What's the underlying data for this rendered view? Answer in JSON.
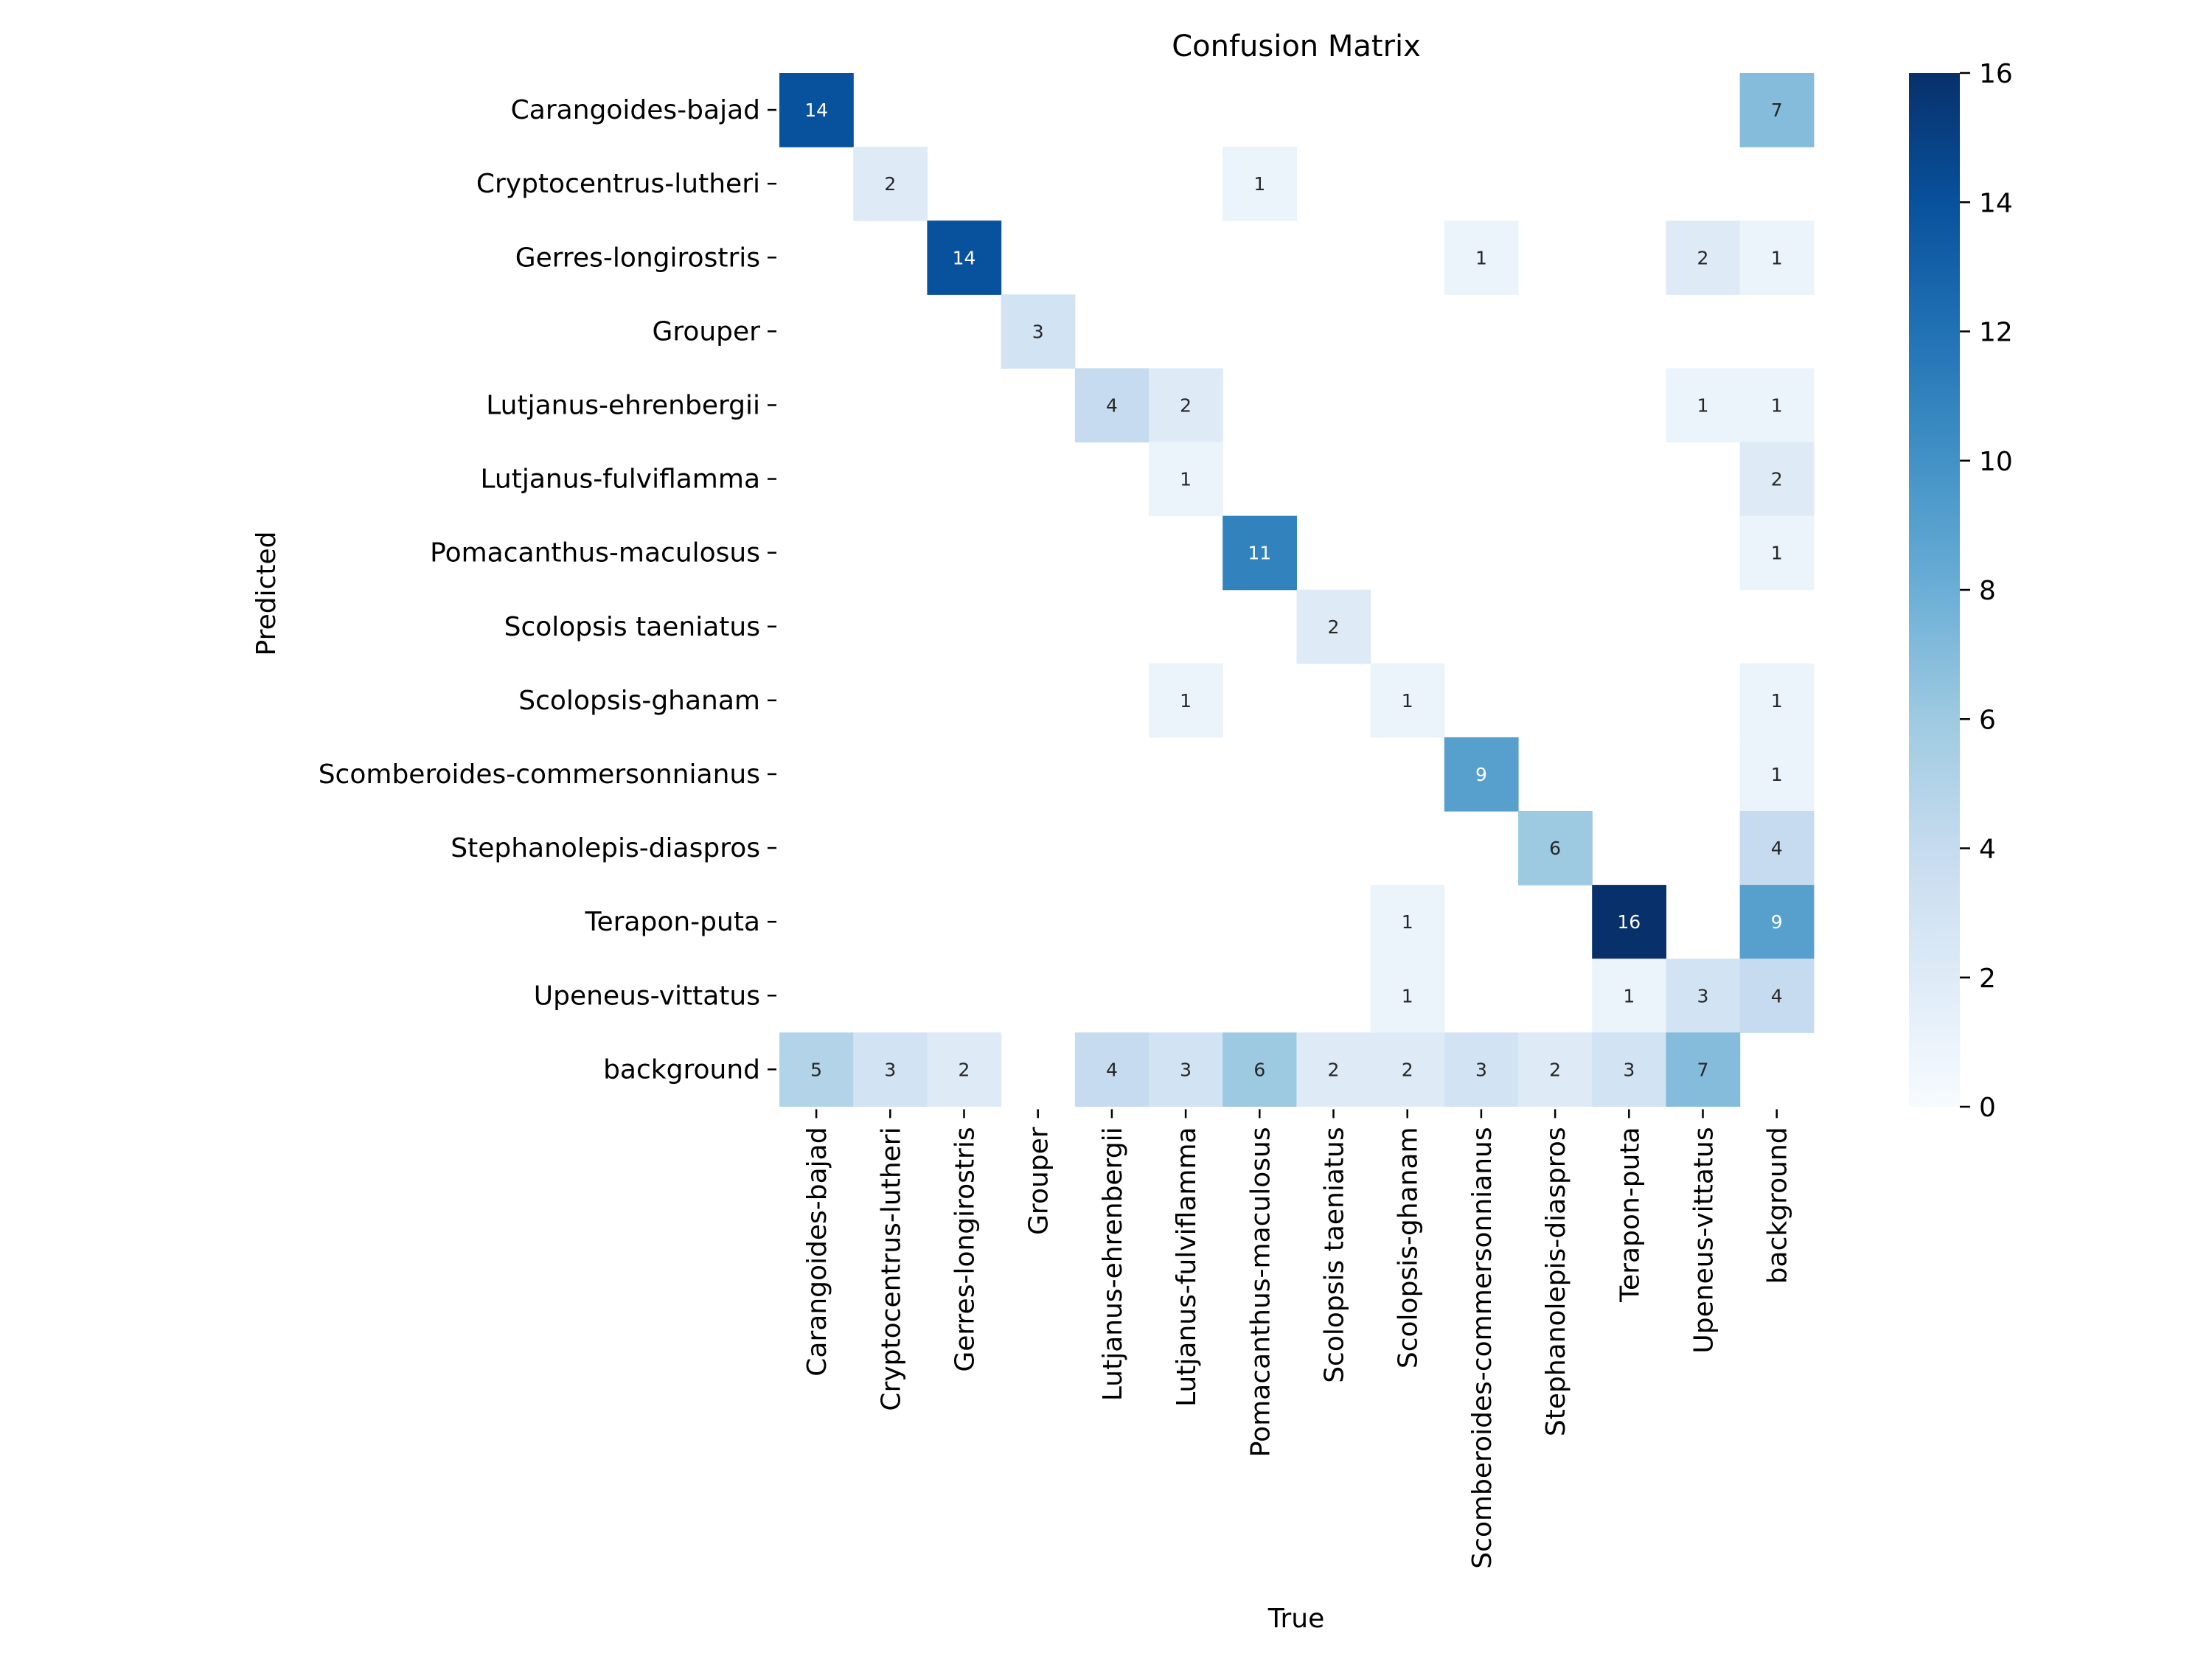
{
  "chart_data": {
    "type": "heatmap",
    "title": "Confusion Matrix",
    "xlabel": "True",
    "ylabel": "Predicted",
    "x_categories": [
      "Carangoides-bajad",
      "Cryptocentrus-lutheri",
      "Gerres-longirostris",
      "Grouper",
      "Lutjanus-ehrenbergii",
      "Lutjanus-fulviflamma",
      "Pomacanthus-maculosus",
      "Scolopsis taeniatus",
      "Scolopsis-ghanam",
      "Scomberoides-commersonnianus",
      "Stephanolepis-diaspros",
      "Terapon-puta",
      "Upeneus-vittatus",
      "background"
    ],
    "y_categories": [
      "Carangoides-bajad",
      "Cryptocentrus-lutheri",
      "Gerres-longirostris",
      "Grouper",
      "Lutjanus-ehrenbergii",
      "Lutjanus-fulviflamma",
      "Pomacanthus-maculosus",
      "Scolopsis taeniatus",
      "Scolopsis-ghanam",
      "Scomberoides-commersonnianus",
      "Stephanolepis-diaspros",
      "Terapon-puta",
      "Upeneus-vittatus",
      "background"
    ],
    "values": [
      [
        14,
        0,
        0,
        0,
        0,
        0,
        0,
        0,
        0,
        0,
        0,
        0,
        0,
        7
      ],
      [
        0,
        2,
        0,
        0,
        0,
        0,
        1,
        0,
        0,
        0,
        0,
        0,
        0,
        0
      ],
      [
        0,
        0,
        14,
        0,
        0,
        0,
        0,
        0,
        0,
        1,
        0,
        0,
        2,
        1
      ],
      [
        0,
        0,
        0,
        3,
        0,
        0,
        0,
        0,
        0,
        0,
        0,
        0,
        0,
        0
      ],
      [
        0,
        0,
        0,
        0,
        4,
        2,
        0,
        0,
        0,
        0,
        0,
        0,
        1,
        1
      ],
      [
        0,
        0,
        0,
        0,
        0,
        1,
        0,
        0,
        0,
        0,
        0,
        0,
        0,
        2
      ],
      [
        0,
        0,
        0,
        0,
        0,
        0,
        11,
        0,
        0,
        0,
        0,
        0,
        0,
        1
      ],
      [
        0,
        0,
        0,
        0,
        0,
        0,
        0,
        2,
        0,
        0,
        0,
        0,
        0,
        0
      ],
      [
        0,
        0,
        0,
        0,
        0,
        1,
        0,
        0,
        1,
        0,
        0,
        0,
        0,
        1
      ],
      [
        0,
        0,
        0,
        0,
        0,
        0,
        0,
        0,
        0,
        9,
        0,
        0,
        0,
        1
      ],
      [
        0,
        0,
        0,
        0,
        0,
        0,
        0,
        0,
        0,
        0,
        6,
        0,
        0,
        4
      ],
      [
        0,
        0,
        0,
        0,
        0,
        0,
        0,
        0,
        1,
        0,
        0,
        16,
        0,
        9
      ],
      [
        0,
        0,
        0,
        0,
        0,
        0,
        0,
        0,
        1,
        0,
        0,
        1,
        3,
        4
      ],
      [
        5,
        3,
        2,
        0,
        4,
        3,
        6,
        2,
        2,
        3,
        2,
        3,
        7,
        0
      ]
    ],
    "zero_cells_blank": true,
    "colorbar": {
      "min": 0,
      "max": 16,
      "ticks": [
        0,
        2,
        4,
        6,
        8,
        10,
        12,
        14,
        16
      ],
      "colormap": "Blues"
    },
    "colors": {
      "low": "#f7fbff",
      "high": "#08306b",
      "dark_text": "#262626",
      "light_text": "#ffffff"
    }
  }
}
